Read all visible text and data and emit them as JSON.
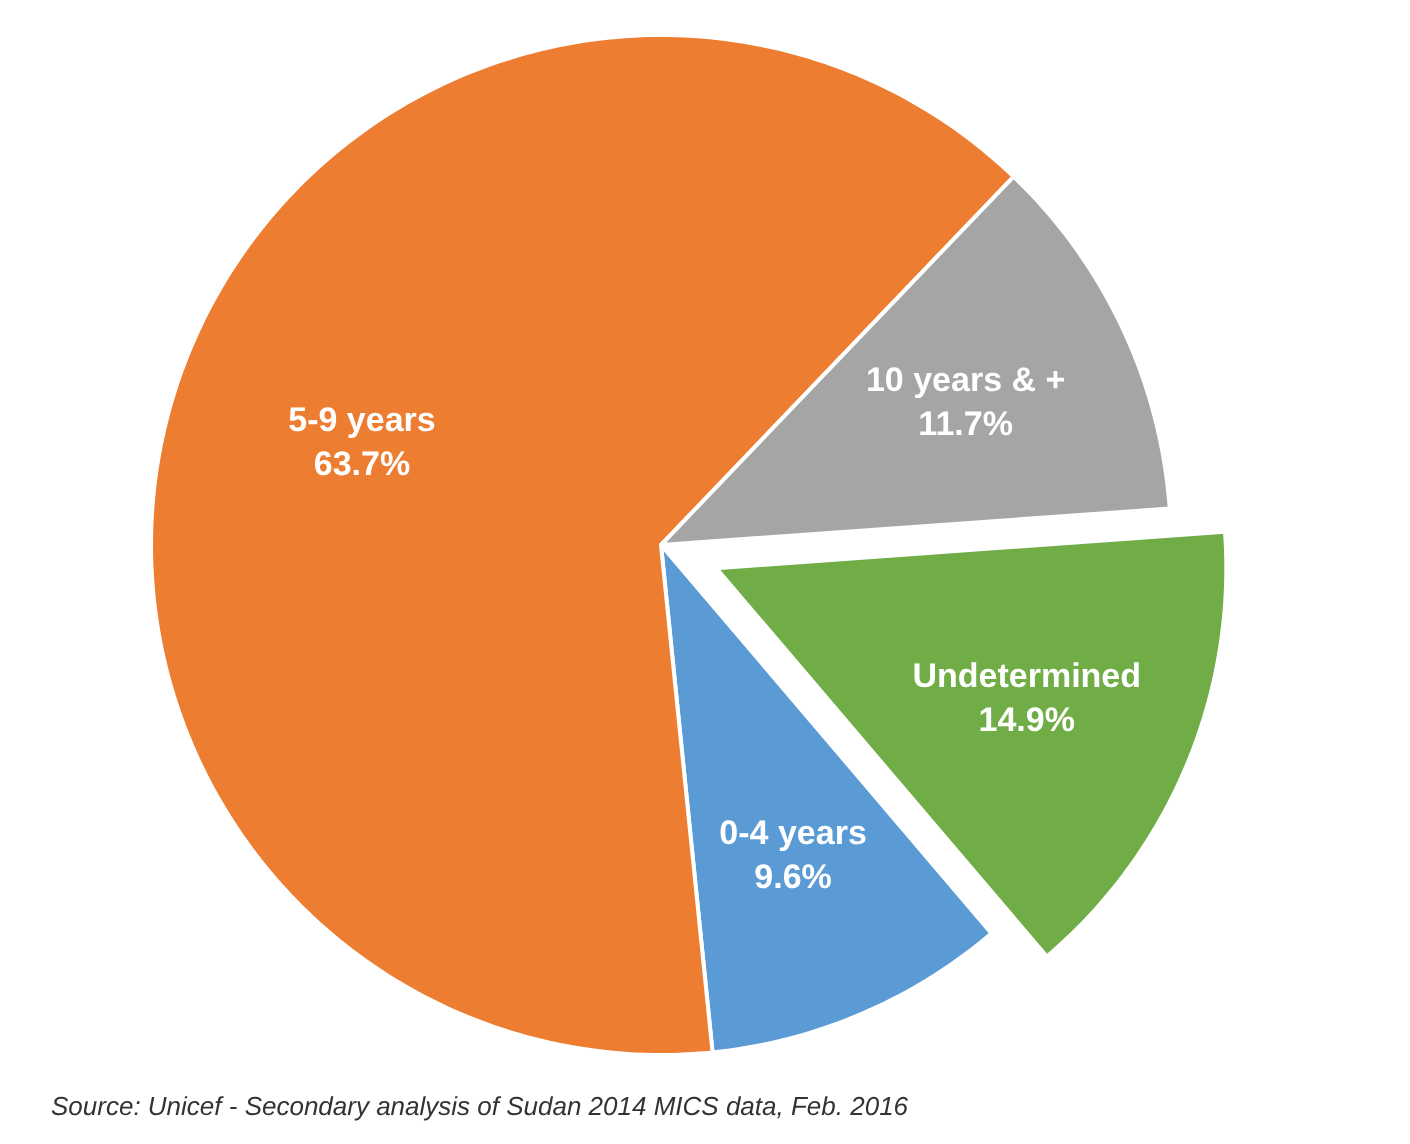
{
  "chart_data": {
    "type": "pie",
    "categories": [
      "0-4 years",
      "5-9 years",
      "10 years & +",
      "Undetermined"
    ],
    "values": [
      9.6,
      63.7,
      11.7,
      14.9
    ],
    "value_labels": [
      "9.6%",
      "63.7%",
      "11.7%",
      "14.9%"
    ],
    "colors": [
      "#5b9bd5",
      "#ed7d31",
      "#a5a5a5",
      "#70ad47"
    ],
    "annotations": [
      "Source: Unicef - Secondary analysis of Sudan 2014 MICS data, Feb. 2016"
    ]
  }
}
